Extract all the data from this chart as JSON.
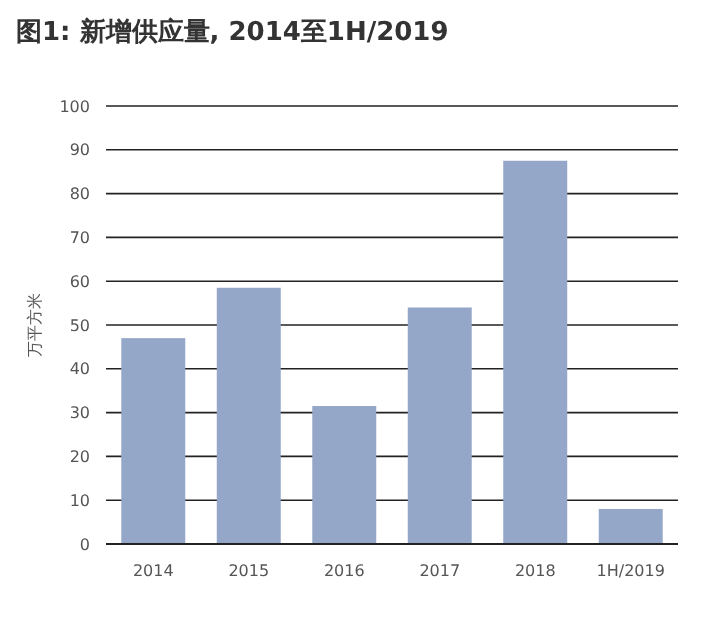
{
  "chart_data": {
    "type": "bar",
    "title": "图1: 新增供应量, 2014至1H/2019",
    "ylabel": "万平方米",
    "categories": [
      "2014",
      "2015",
      "2016",
      "2017",
      "2018",
      "1H/2019"
    ],
    "values": [
      47,
      58.5,
      31.5,
      54,
      87.5,
      8
    ],
    "color": "#94a7c9",
    "ylim": [
      0,
      100
    ],
    "yticks": [
      0,
      10,
      20,
      30,
      40,
      50,
      60,
      70,
      80,
      90,
      100
    ],
    "grid": "y"
  }
}
